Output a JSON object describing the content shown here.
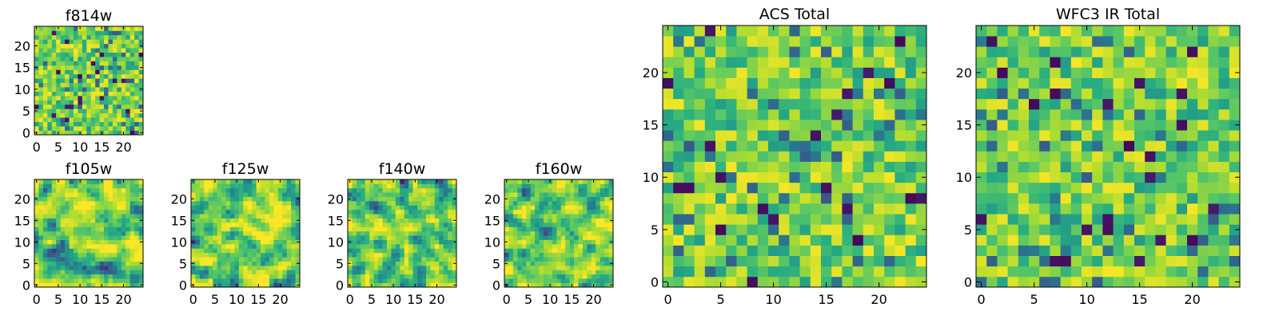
{
  "chart_data": [
    {
      "type": "heatmap",
      "title": "f814w",
      "colormap": "viridis",
      "grid_size": 25,
      "xlim": [
        -0.5,
        24.5
      ],
      "ylim": [
        -0.5,
        24.5
      ],
      "xticks": [
        "0",
        "5",
        "10",
        "15",
        "20"
      ],
      "yticks": [
        "0",
        "5",
        "10",
        "15",
        "20"
      ],
      "values": "synthetic noise field, per-pixel values not legible"
    },
    {
      "type": "heatmap",
      "title": "f105w",
      "colormap": "viridis",
      "grid_size": 25,
      "xlim": [
        -0.5,
        24.5
      ],
      "ylim": [
        -0.5,
        24.5
      ],
      "xticks": [
        "0",
        "5",
        "10",
        "15",
        "20"
      ],
      "yticks": [
        "0",
        "5",
        "10",
        "15",
        "20"
      ],
      "values": "synthetic noise field, per-pixel values not legible"
    },
    {
      "type": "heatmap",
      "title": "f125w",
      "colormap": "viridis",
      "grid_size": 25,
      "xlim": [
        -0.5,
        24.5
      ],
      "ylim": [
        -0.5,
        24.5
      ],
      "xticks": [
        "0",
        "5",
        "10",
        "15",
        "20"
      ],
      "yticks": [
        "0",
        "5",
        "10",
        "15",
        "20"
      ],
      "values": "synthetic noise field, per-pixel values not legible"
    },
    {
      "type": "heatmap",
      "title": "f140w",
      "colormap": "viridis",
      "grid_size": 25,
      "xlim": [
        -0.5,
        24.5
      ],
      "ylim": [
        -0.5,
        24.5
      ],
      "xticks": [
        "0",
        "5",
        "10",
        "15",
        "20"
      ],
      "yticks": [
        "0",
        "5",
        "10",
        "15",
        "20"
      ],
      "values": "synthetic noise field, per-pixel values not legible"
    },
    {
      "type": "heatmap",
      "title": "f160w",
      "colormap": "viridis",
      "grid_size": 25,
      "xlim": [
        -0.5,
        24.5
      ],
      "ylim": [
        -0.5,
        24.5
      ],
      "xticks": [
        "0",
        "5",
        "10",
        "15",
        "20"
      ],
      "yticks": [
        "0",
        "5",
        "10",
        "15",
        "20"
      ],
      "values": "synthetic noise field, per-pixel values not legible"
    },
    {
      "type": "heatmap",
      "title": "ACS Total",
      "colormap": "viridis",
      "grid_size": 25,
      "xlim": [
        -0.5,
        24.5
      ],
      "ylim": [
        -0.5,
        24.5
      ],
      "xticks": [
        "0",
        "5",
        "10",
        "15",
        "20"
      ],
      "yticks": [
        "0",
        "5",
        "10",
        "15",
        "20"
      ],
      "values": "synthetic noise field, per-pixel values not legible"
    },
    {
      "type": "heatmap",
      "title": "WFC3 IR Total",
      "colormap": "viridis",
      "grid_size": 25,
      "xlim": [
        -0.5,
        24.5
      ],
      "ylim": [
        -0.5,
        24.5
      ],
      "xticks": [
        "0",
        "5",
        "10",
        "15",
        "20"
      ],
      "yticks": [
        "0",
        "5",
        "10",
        "15",
        "20"
      ],
      "values": "synthetic noise field, per-pixel values not legible"
    }
  ]
}
